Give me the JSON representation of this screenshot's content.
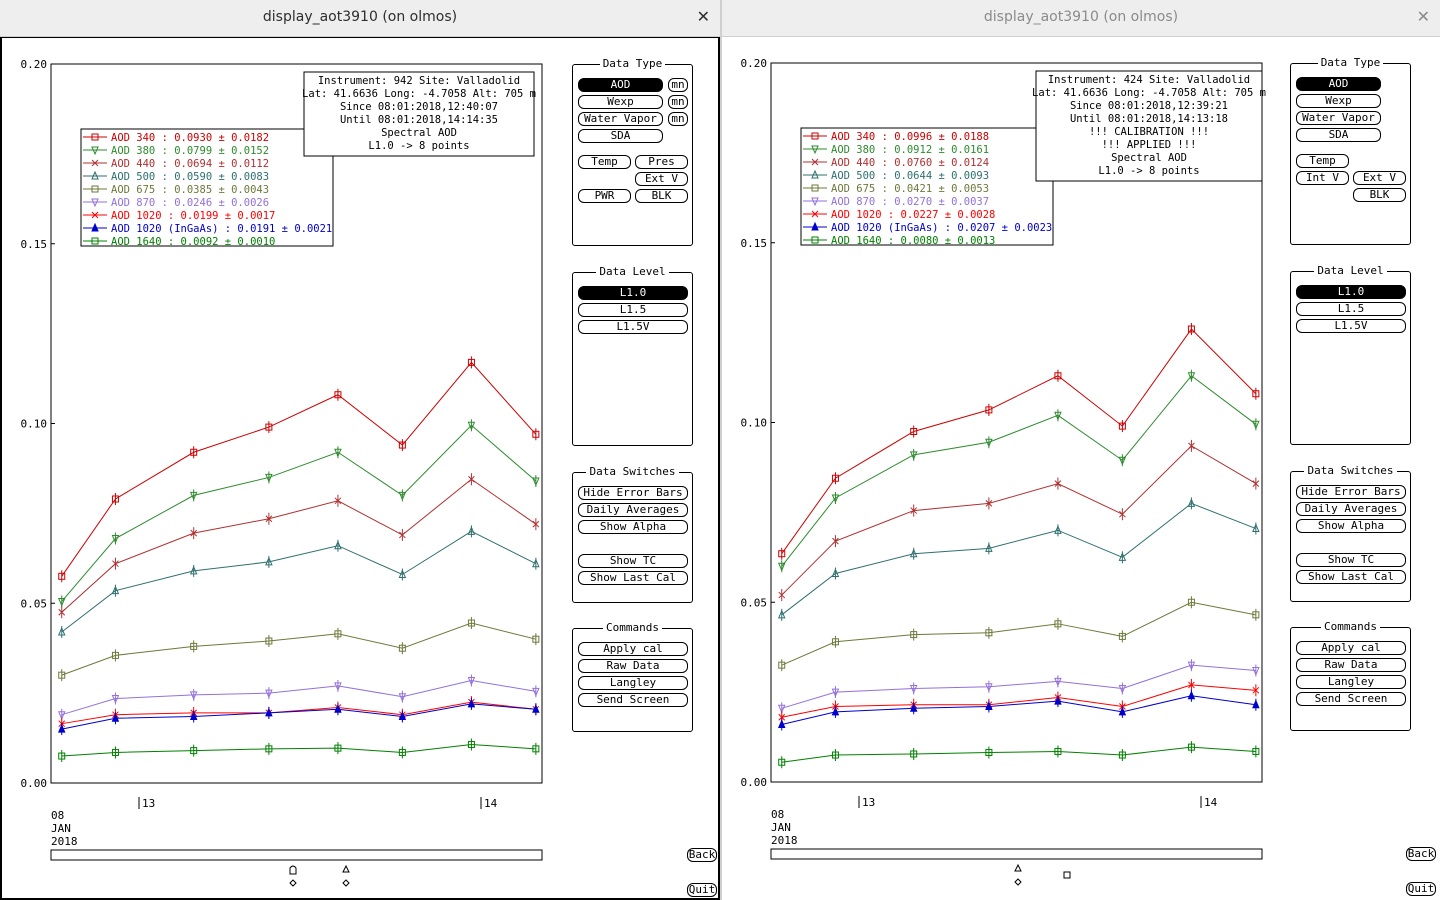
{
  "windows": [
    {
      "title": "display_aot3910 (on olmos)",
      "info": [
        "Instrument: 942 Site: Valladolid",
        "Lat: 41.6636 Long: -4.7058 Alt: 705 m",
        "Since 08:01:2018,12:40:07",
        "Until 08:01:2018,14:14:35",
        "Spectral AOD",
        "L1.0 -> 8 points"
      ],
      "legend": [
        {
          "label": "AOD 340  : 0.0930 ± 0.0182",
          "color": "#cc0000"
        },
        {
          "label": "AOD 380  : 0.0799 ± 0.0152",
          "color": "#2e8b2e"
        },
        {
          "label": "AOD 440  : 0.0694 ± 0.0112",
          "color": "#b03030"
        },
        {
          "label": "AOD 500  : 0.0590 ± 0.0083",
          "color": "#2f6f6f"
        },
        {
          "label": "AOD 675  : 0.0385 ± 0.0043",
          "color": "#6b7a3a"
        },
        {
          "label": "AOD 870  : 0.0246 ± 0.0026",
          "color": "#9370db"
        },
        {
          "label": "AOD 1020  : 0.0199 ± 0.0017",
          "color": "#ff0000"
        },
        {
          "label": "AOD 1020 (InGaAs)  : 0.0191 ± 0.0021",
          "color": "#0000cc"
        },
        {
          "label": "AOD 1640  : 0.0092 ± 0.0010",
          "color": "#008000"
        }
      ],
      "chart_data": {
        "type": "line",
        "ylim": [
          0,
          0.2
        ],
        "yticks": [
          "0.20",
          "0.15",
          "0.10",
          "0.05",
          "0.00"
        ],
        "xlabels": {
          "date": [
            "08",
            "JAN",
            "2018"
          ],
          "h13": "13",
          "h14": "14"
        },
        "x": [
          0.7,
          4.2,
          9.3,
          14.2,
          18.7,
          22.9,
          27.4,
          31.6
        ],
        "series": [
          {
            "name": "AOD 340",
            "values": [
              0.0575,
              0.079,
              0.092,
              0.099,
              0.108,
              0.094,
              0.117,
              0.097
            ]
          },
          {
            "name": "AOD 380",
            "values": [
              0.0505,
              0.068,
              0.08,
              0.085,
              0.092,
              0.08,
              0.0995,
              0.084
            ]
          },
          {
            "name": "AOD 440",
            "values": [
              0.0475,
              0.061,
              0.0695,
              0.0735,
              0.0785,
              0.069,
              0.0845,
              0.072
            ]
          },
          {
            "name": "AOD 500",
            "values": [
              0.042,
              0.0535,
              0.059,
              0.0615,
              0.066,
              0.058,
              0.07,
              0.061
            ]
          },
          {
            "name": "AOD 675",
            "values": [
              0.03,
              0.0355,
              0.038,
              0.0395,
              0.0415,
              0.0375,
              0.0445,
              0.04
            ]
          },
          {
            "name": "AOD 870",
            "values": [
              0.019,
              0.0235,
              0.0245,
              0.025,
              0.027,
              0.024,
              0.0285,
              0.0255
            ]
          },
          {
            "name": "AOD 1020",
            "values": [
              0.0165,
              0.019,
              0.0195,
              0.0195,
              0.021,
              0.019,
              0.0225,
              0.0205
            ]
          },
          {
            "name": "AOD 1020 (InGaAs)",
            "values": [
              0.015,
              0.018,
              0.0185,
              0.0195,
              0.0205,
              0.0185,
              0.022,
              0.0205
            ]
          },
          {
            "name": "AOD 1640",
            "values": [
              0.0075,
              0.0085,
              0.009,
              0.0095,
              0.0097,
              0.0085,
              0.0107,
              0.0095
            ]
          }
        ]
      },
      "marks": [
        {
          "x": 291,
          "shape": "bullet"
        },
        {
          "x": 344,
          "shape": "triangle"
        }
      ]
    },
    {
      "title": "display_aot3910 (on olmos)",
      "info": [
        "Instrument: 424 Site: Valladolid",
        "Lat: 41.6636 Long: -4.7058 Alt: 705 m",
        "Since 08:01:2018,12:39:21",
        "Until 08:01:2018,14:13:18",
        "!!! CALIBRATION !!!",
        "!!!   APPLIED   !!!",
        "Spectral AOD",
        "L1.0 -> 8 points"
      ],
      "legend": [
        {
          "label": "AOD 340  : 0.0996 ± 0.0188",
          "color": "#cc0000"
        },
        {
          "label": "AOD 380  : 0.0912 ± 0.0161",
          "color": "#2e8b2e"
        },
        {
          "label": "AOD 440  : 0.0760 ± 0.0124",
          "color": "#b03030"
        },
        {
          "label": "AOD 500  : 0.0644 ± 0.0093",
          "color": "#2f6f6f"
        },
        {
          "label": "AOD 675  : 0.0421 ± 0.0053",
          "color": "#6b7a3a"
        },
        {
          "label": "AOD 870  : 0.0270 ± 0.0037",
          "color": "#9370db"
        },
        {
          "label": "AOD 1020  : 0.0227 ± 0.0028",
          "color": "#ff0000"
        },
        {
          "label": "AOD 1020 (InGaAs)  : 0.0207 ± 0.0023",
          "color": "#0000cc"
        },
        {
          "label": "AOD 1640  : 0.0080 ± 0.0013",
          "color": "#008000"
        }
      ],
      "chart_data": {
        "type": "line",
        "ylim": [
          0,
          0.2
        ],
        "yticks": [
          "0.20",
          "0.15",
          "0.10",
          "0.05",
          "0.00"
        ],
        "xlabels": {
          "date": [
            "08",
            "JAN",
            "2018"
          ],
          "h13": "13",
          "h14": "14"
        },
        "x": [
          0.7,
          4.2,
          9.3,
          14.2,
          18.7,
          22.9,
          27.4,
          31.6
        ],
        "series": [
          {
            "name": "AOD 340",
            "values": [
              0.0635,
              0.0845,
              0.0975,
              0.1035,
              0.113,
              0.099,
              0.126,
              0.108
            ]
          },
          {
            "name": "AOD 380",
            "values": [
              0.06,
              0.079,
              0.091,
              0.0945,
              0.102,
              0.0895,
              0.113,
              0.0995
            ]
          },
          {
            "name": "AOD 440",
            "values": [
              0.052,
              0.067,
              0.0755,
              0.0775,
              0.083,
              0.0745,
              0.0935,
              0.083
            ]
          },
          {
            "name": "AOD 500",
            "values": [
              0.0465,
              0.058,
              0.0635,
              0.065,
              0.07,
              0.0625,
              0.0775,
              0.0705
            ]
          },
          {
            "name": "AOD 675",
            "values": [
              0.0325,
              0.039,
              0.041,
              0.0415,
              0.044,
              0.0405,
              0.05,
              0.0465
            ]
          },
          {
            "name": "AOD 870",
            "values": [
              0.0205,
              0.025,
              0.026,
              0.0265,
              0.028,
              0.026,
              0.0325,
              0.031
            ]
          },
          {
            "name": "AOD 1020",
            "values": [
              0.018,
              0.021,
              0.0215,
              0.0215,
              0.0235,
              0.021,
              0.027,
              0.0255
            ]
          },
          {
            "name": "AOD 1020 (InGaAs)",
            "values": [
              0.016,
              0.0195,
              0.0205,
              0.021,
              0.0225,
              0.0195,
              0.024,
              0.0215
            ]
          },
          {
            "name": "AOD 1640",
            "values": [
              0.0055,
              0.0075,
              0.0078,
              0.0082,
              0.0085,
              0.0075,
              0.0097,
              0.0085
            ]
          }
        ]
      },
      "marks": [
        {
          "x": 296,
          "shape": "triangle"
        },
        {
          "x": 345,
          "shape": "square"
        }
      ]
    }
  ],
  "panels": {
    "data_type": {
      "title": "Data Type",
      "aod": "AOD",
      "wexp": "Wexp",
      "water_vapor": "Water Vapor",
      "sda": "SDA",
      "mn": "mn",
      "temp": "Temp",
      "pres": "Pres",
      "ext_v": "Ext V",
      "int_v": "Int V",
      "pwr": "PWR",
      "blk": "BLK"
    },
    "data_level": {
      "title": "Data Level",
      "l10": "L1.0",
      "l15": "L1.5",
      "l15v": "L1.5V"
    },
    "data_switches": {
      "title": "Data Switches",
      "hide_error_bars": "Hide Error Bars",
      "daily_averages": "Daily Averages",
      "show_alpha": "Show Alpha",
      "show_tc": "Show TC",
      "show_last_cal": "Show Last Cal"
    },
    "commands": {
      "title": "Commands",
      "apply_cal": "Apply cal",
      "raw_data": "Raw Data",
      "langley": "Langley",
      "send_screen": "Send Screen"
    }
  },
  "nav": {
    "back": "Back",
    "quit": "Quit"
  }
}
